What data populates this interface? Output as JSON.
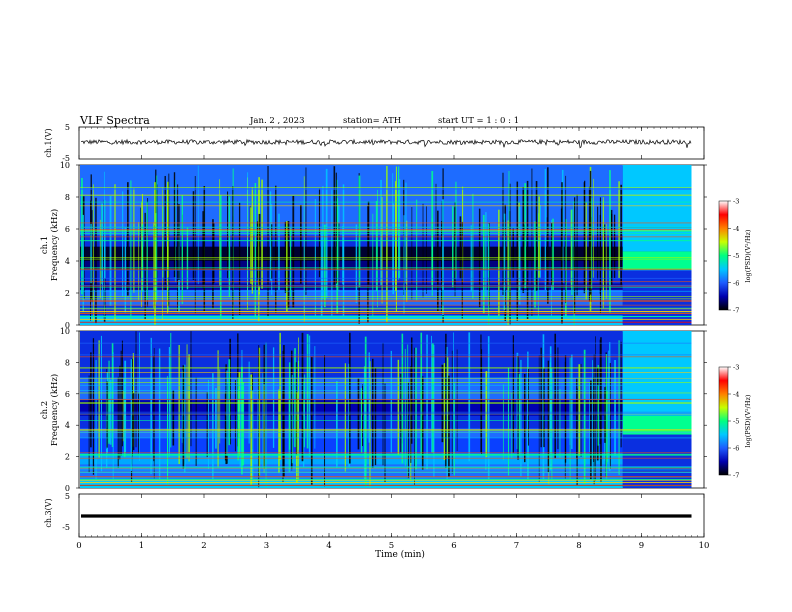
{
  "header": {
    "title": "VLF  Spectra",
    "date": "Jan.  2  , 2023",
    "station": "station= ATH",
    "start": "start  UT  =    1  : 0   : 1"
  },
  "chart_data": [
    {
      "type": "line",
      "id": "ch1-waveform",
      "ylabel": "ch.1(V)",
      "yticks": [
        "5",
        "-5"
      ],
      "ylim": [
        -5,
        5
      ],
      "xlim": [
        0,
        10
      ],
      "trace_end_min": 9.8,
      "series_color": "#000000",
      "description_values": {
        "mean_level": 0.3,
        "noise_amplitude": 0.35
      }
    },
    {
      "type": "heatmap",
      "id": "ch1-spectrogram",
      "ylabel": "ch.1\nFrequency  (kHz)",
      "ylabel_lines": [
        "ch.1",
        "Frequency  (kHz)"
      ],
      "yticks": [
        "0",
        "2",
        "4",
        "6",
        "8",
        "10"
      ],
      "ylim": [
        0,
        10
      ],
      "xlim": [
        0,
        10
      ],
      "data_end_min": 9.8,
      "colorbar": {
        "label": "log(PSD)(V²/Hz)",
        "ticks": [
          "-3",
          "-4",
          "-5",
          "-6",
          "-7"
        ],
        "range": [
          -7,
          -3
        ],
        "colors": [
          "#000000",
          "#0000b0",
          "#1e5cff",
          "#00c8ff",
          "#00ff80",
          "#c8ff00",
          "#ff8000",
          "#ff0000",
          "#ffffff"
        ]
      }
    },
    {
      "type": "heatmap",
      "id": "ch2-spectrogram",
      "ylabel": "ch.2\nFrequency  (kHz)",
      "ylabel_lines": [
        "ch.2",
        "Frequency  (kHz)"
      ],
      "yticks": [
        "0",
        "2",
        "4",
        "6",
        "8",
        "10"
      ],
      "ylim": [
        0,
        10
      ],
      "xlim": [
        0,
        10
      ],
      "data_end_min": 9.8,
      "colorbar": {
        "label": "log(PSD)(V²/Hz)",
        "ticks": [
          "-3",
          "-4",
          "-5",
          "-6",
          "-7"
        ],
        "range": [
          -7,
          -3
        ],
        "colors": [
          "#000000",
          "#0000b0",
          "#1e5cff",
          "#00c8ff",
          "#00ff80",
          "#c8ff00",
          "#ff8000",
          "#ff0000",
          "#ffffff"
        ]
      }
    },
    {
      "type": "line",
      "id": "ch3-waveform",
      "ylabel": "ch.3(V)",
      "yticks": [
        "5",
        "-5"
      ],
      "ylim": [
        -5,
        5
      ],
      "xlim": [
        0,
        10
      ],
      "trace_end_min": 9.8,
      "series_color": "#000000",
      "description_values": {
        "mean_level": 0.0
      }
    }
  ],
  "xaxis": {
    "label": "Time  (min)",
    "ticks": [
      "0",
      "1",
      "2",
      "3",
      "4",
      "5",
      "6",
      "7",
      "8",
      "9",
      "10"
    ],
    "range": [
      0,
      10
    ]
  }
}
